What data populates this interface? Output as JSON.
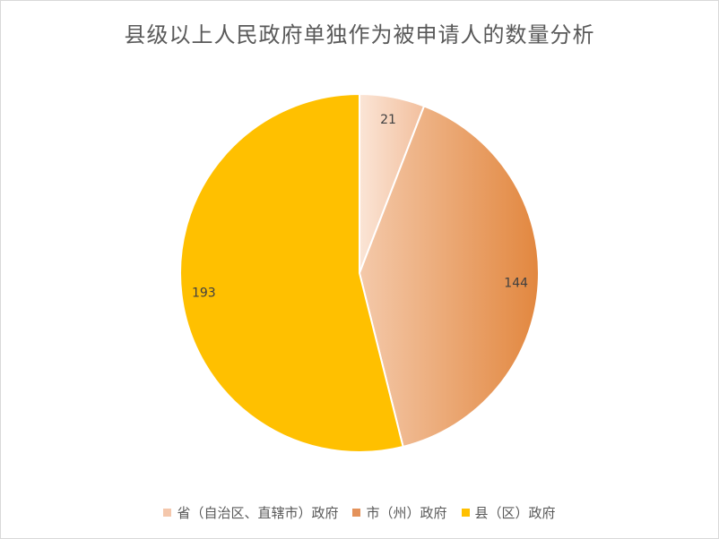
{
  "chart_data": {
    "type": "pie",
    "title": "县级以上人民政府单独作为被申请人的数量分析",
    "categories": [
      "省（自治区、直辖市）政府",
      "市（州）政府",
      "县（区）政府"
    ],
    "values": [
      21,
      144,
      193
    ],
    "colors": [
      "#f4c7ac",
      "#e4925a",
      "#ffc000"
    ],
    "gradients": [
      [
        "#fbe5d6",
        "#f1bb97"
      ],
      [
        "#f4c9aa",
        "#e2873f"
      ],
      [
        "#ffc000",
        "#ffc000"
      ]
    ],
    "start_angle_deg": 0,
    "direction": "clockwise",
    "legend_position": "bottom",
    "data_labels": true
  }
}
